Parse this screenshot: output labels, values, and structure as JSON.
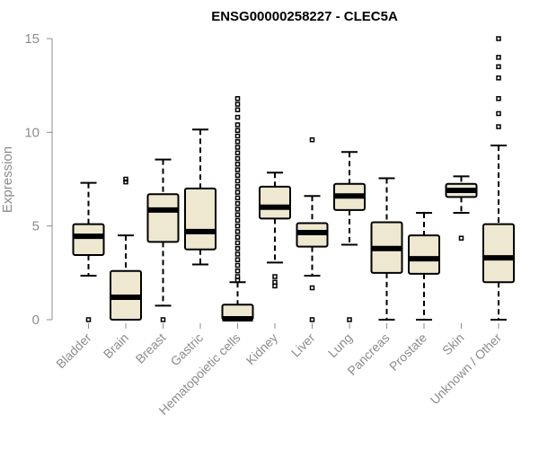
{
  "chart_data": {
    "type": "boxplot",
    "title": "ENSG00000258227 - CLEC5A",
    "xlabel": "",
    "ylabel": "Expression",
    "ylim": [
      0,
      15
    ],
    "yticks": [
      0,
      5,
      10,
      15
    ],
    "colors": {
      "box_fill": "#eee8d0",
      "stroke": "#000000",
      "axis": "#8c8c8c"
    },
    "categories": [
      "Bladder",
      "Brain",
      "Breast",
      "Gastric",
      "Hematopoietic cells",
      "Kidney",
      "Liver",
      "Lung",
      "Pancreas",
      "Prostate",
      "Skin",
      "Unknown / Other"
    ],
    "boxes": [
      {
        "category": "Bladder",
        "whisker_low": 2.35,
        "q1": 3.45,
        "median": 4.45,
        "q3": 5.1,
        "whisker_high": 7.3,
        "outliers": [
          0
        ]
      },
      {
        "category": "Brain",
        "whisker_low": 0,
        "q1": 0,
        "median": 1.2,
        "q3": 2.6,
        "whisker_high": 4.5,
        "outliers": [
          7.35,
          7.5
        ]
      },
      {
        "category": "Breast",
        "whisker_low": 0.75,
        "q1": 4.15,
        "median": 5.85,
        "q3": 6.7,
        "whisker_high": 8.55,
        "outliers": [
          0
        ]
      },
      {
        "category": "Gastric",
        "whisker_low": 2.95,
        "q1": 3.75,
        "median": 4.7,
        "q3": 7.0,
        "whisker_high": 10.15,
        "outliers": []
      },
      {
        "category": "Hematopoietic cells",
        "whisker_low": 0,
        "q1": 0,
        "median": 0.05,
        "q3": 0.8,
        "whisker_high": 2.0,
        "outliers": [
          2.1,
          2.3,
          2.6,
          2.9,
          3.2,
          3.5,
          3.8,
          4.1,
          4.4,
          4.7,
          5.0,
          5.3,
          5.6,
          5.9,
          6.2,
          6.5,
          6.8,
          7.1,
          7.4,
          7.7,
          8.0,
          8.3,
          8.6,
          8.9,
          9.2,
          9.5,
          9.8,
          10.1,
          10.4,
          10.8,
          11.2,
          11.5,
          11.8
        ]
      },
      {
        "category": "Kidney",
        "whisker_low": 3.05,
        "q1": 5.4,
        "median": 6.0,
        "q3": 7.1,
        "whisker_high": 7.85,
        "outliers": [
          1.8,
          2.0,
          2.3
        ]
      },
      {
        "category": "Liver",
        "whisker_low": 2.35,
        "q1": 3.9,
        "median": 4.65,
        "q3": 5.15,
        "whisker_high": 6.6,
        "outliers": [
          0,
          1.7,
          9.6
        ]
      },
      {
        "category": "Lung",
        "whisker_low": 4.0,
        "q1": 5.85,
        "median": 6.6,
        "q3": 7.25,
        "whisker_high": 8.95,
        "outliers": [
          0
        ]
      },
      {
        "category": "Pancreas",
        "whisker_low": 0,
        "q1": 2.5,
        "median": 3.8,
        "q3": 5.2,
        "whisker_high": 7.55,
        "outliers": []
      },
      {
        "category": "Prostate",
        "whisker_low": 0,
        "q1": 2.45,
        "median": 3.25,
        "q3": 4.5,
        "whisker_high": 5.7,
        "outliers": []
      },
      {
        "category": "Skin",
        "whisker_low": 5.7,
        "q1": 6.55,
        "median": 6.9,
        "q3": 7.25,
        "whisker_high": 7.65,
        "outliers": [
          4.35
        ]
      },
      {
        "category": "Unknown / Other",
        "whisker_low": 0,
        "q1": 2.0,
        "median": 3.3,
        "q3": 5.1,
        "whisker_high": 9.3,
        "outliers": [
          10.3,
          11.0,
          11.8,
          12.9,
          13.5,
          14.0,
          15.0
        ]
      }
    ]
  }
}
